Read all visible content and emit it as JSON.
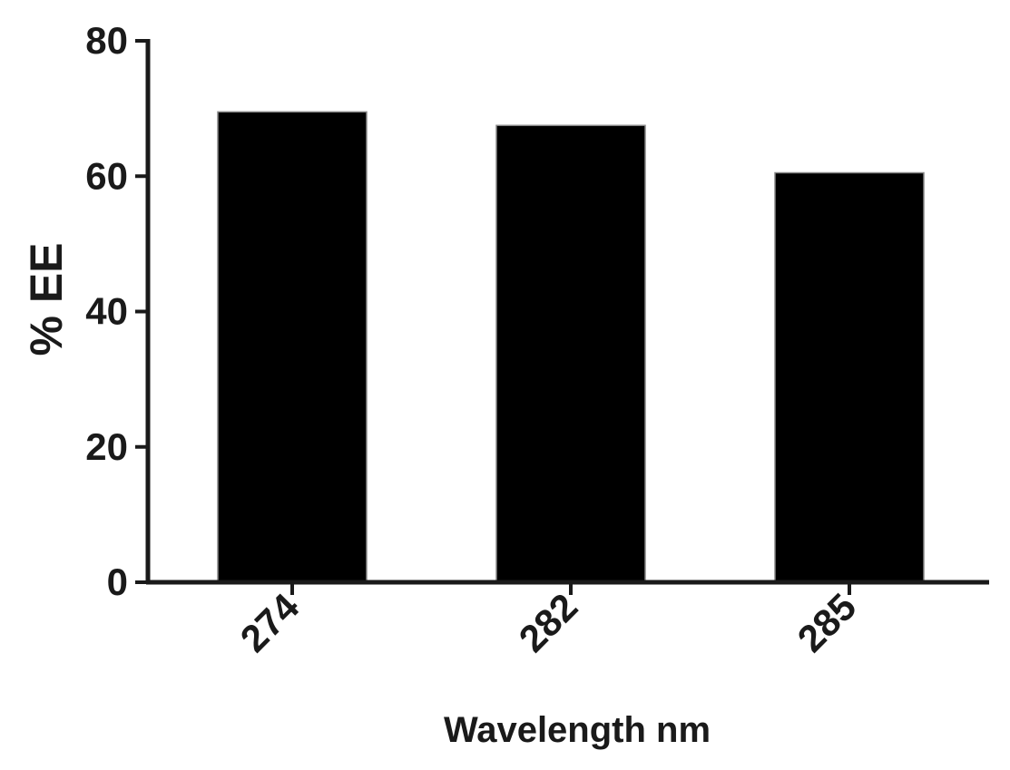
{
  "chart_data": {
    "type": "bar",
    "categories": [
      "274",
      "282",
      "285"
    ],
    "values": [
      69.5,
      67.5,
      60.5
    ],
    "title": "",
    "xlabel": "Wavelength nm",
    "ylabel": "% EE",
    "ylim": [
      0,
      80
    ],
    "yticks": [
      0,
      20,
      40,
      60,
      80
    ],
    "grid": false,
    "bar_color": "#000000",
    "axis_color": "#1a1a1a"
  }
}
